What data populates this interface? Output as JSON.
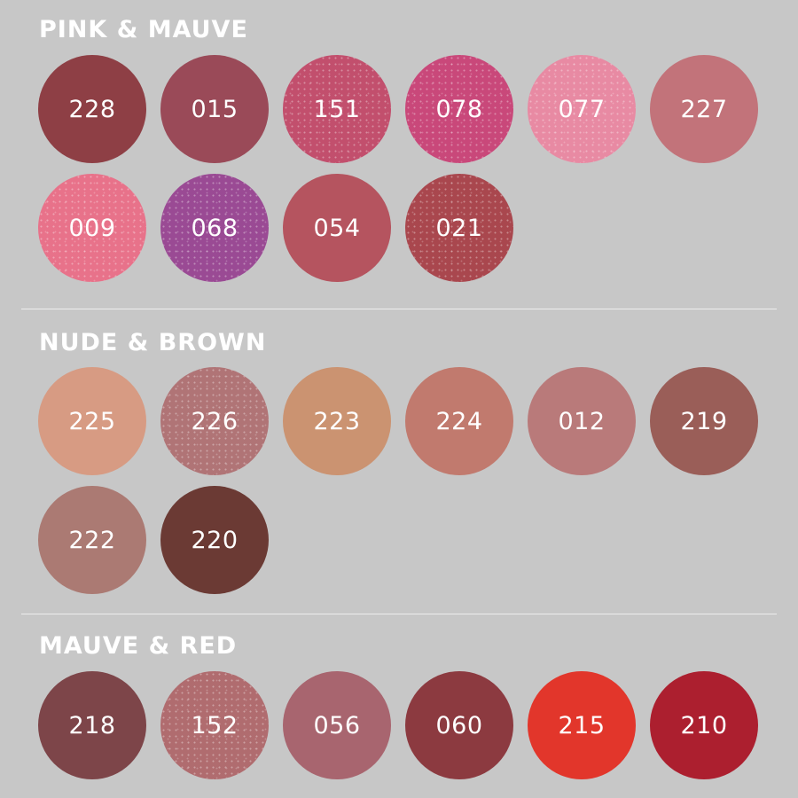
{
  "sections": [
    {
      "title": "PINK & MAUVE",
      "swatches": [
        {
          "code": "228",
          "color": "#8e3f45",
          "shimmer": false
        },
        {
          "code": "015",
          "color": "#9a4a58",
          "shimmer": false
        },
        {
          "code": "151",
          "color": "#c24f6d",
          "shimmer": true
        },
        {
          "code": "078",
          "color": "#c9487a",
          "shimmer": true
        },
        {
          "code": "077",
          "color": "#e88aa3",
          "shimmer": true
        },
        {
          "code": "227",
          "color": "#c2737a",
          "shimmer": false
        },
        {
          "code": "009",
          "color": "#e8728a",
          "shimmer": true
        },
        {
          "code": "068",
          "color": "#9a4a94",
          "shimmer": true
        },
        {
          "code": "054",
          "color": "#b5545f",
          "shimmer": false
        },
        {
          "code": "021",
          "color": "#a9474e",
          "shimmer": true
        }
      ]
    },
    {
      "title": "NUDE & BROWN",
      "swatches": [
        {
          "code": "225",
          "color": "#d79b83",
          "shimmer": false
        },
        {
          "code": "226",
          "color": "#b07476",
          "shimmer": true
        },
        {
          "code": "223",
          "color": "#cb9371",
          "shimmer": false
        },
        {
          "code": "224",
          "color": "#c17a6e",
          "shimmer": false
        },
        {
          "code": "012",
          "color": "#b97a7a",
          "shimmer": false
        },
        {
          "code": "219",
          "color": "#9a5e58",
          "shimmer": false
        },
        {
          "code": "222",
          "color": "#ab7a73",
          "shimmer": false
        },
        {
          "code": "220",
          "color": "#6b3a34",
          "shimmer": false
        }
      ]
    },
    {
      "title": "MAUVE & RED",
      "swatches": [
        {
          "code": "218",
          "color": "#7d4549",
          "shimmer": false
        },
        {
          "code": "152",
          "color": "#b06c6f",
          "shimmer": true
        },
        {
          "code": "056",
          "color": "#a8656f",
          "shimmer": false
        },
        {
          "code": "060",
          "color": "#8c3a40",
          "shimmer": false
        },
        {
          "code": "215",
          "color": "#e2362b",
          "shimmer": false
        },
        {
          "code": "210",
          "color": "#ac1f2f",
          "shimmer": false
        }
      ]
    }
  ]
}
